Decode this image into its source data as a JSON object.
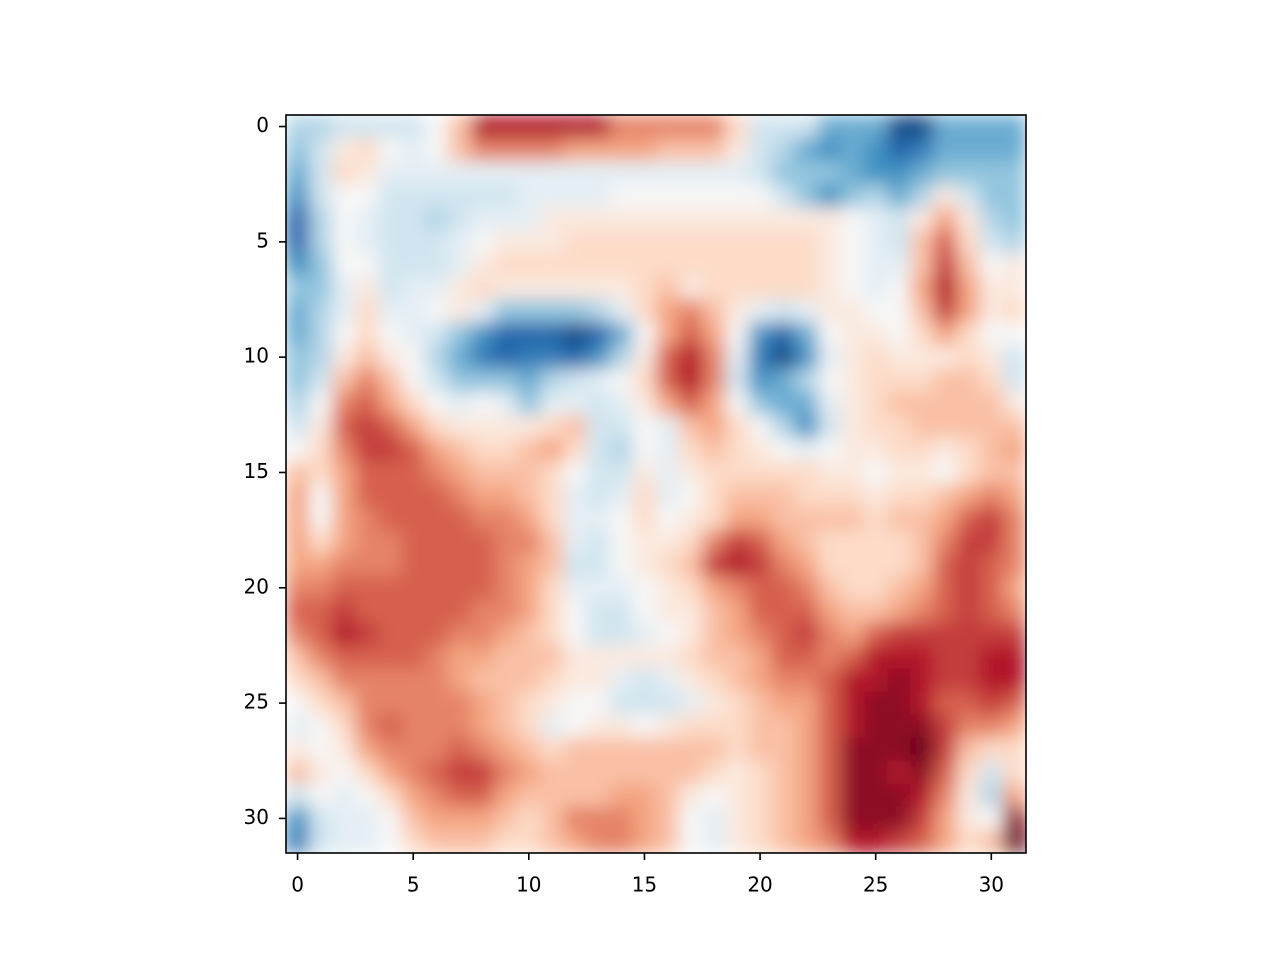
{
  "chart_data": {
    "type": "heatmap",
    "colormap": "RdBu_r",
    "vlim": [
      -1,
      1
    ],
    "interpolation": "smooth",
    "xlim": [
      -0.5,
      31.5
    ],
    "ylim": [
      31.5,
      -0.5
    ],
    "xticks": [
      0,
      5,
      10,
      15,
      20,
      25,
      30
    ],
    "yticks": [
      0,
      5,
      10,
      15,
      20,
      25,
      30
    ],
    "values": [
      [
        -0.3,
        -0.3,
        -0.2,
        -0.2,
        -0.2,
        -0.2,
        0,
        0.3,
        0.8,
        0.8,
        0.8,
        0.8,
        0.8,
        0.8,
        0.5,
        0.5,
        0.5,
        0.5,
        0.5,
        0.2,
        -0.2,
        -0.2,
        -0.2,
        -0.5,
        -0.5,
        -0.5,
        -0.9,
        -0.9,
        -0.5,
        -0.5,
        -0.5,
        -0.5
      ],
      [
        -0.4,
        -0.2,
        0.1,
        0.2,
        0,
        -0.1,
        0,
        0.3,
        0.5,
        0.5,
        0.5,
        0.5,
        0.4,
        0.4,
        0.4,
        0.4,
        0.3,
        0.3,
        0.3,
        0.1,
        -0.2,
        -0.3,
        -0.5,
        -0.6,
        -0.5,
        -0.6,
        -0.8,
        -0.7,
        -0.5,
        -0.5,
        -0.5,
        -0.5
      ],
      [
        -0.5,
        -0.2,
        0.2,
        0.1,
        -0.1,
        -0.1,
        -0.1,
        -0.1,
        -0.1,
        -0.1,
        -0.1,
        -0.1,
        -0.1,
        -0.1,
        -0.1,
        -0.1,
        -0.1,
        -0.1,
        -0.1,
        -0.1,
        -0.2,
        -0.4,
        -0.4,
        -0.4,
        -0.5,
        -0.6,
        -0.6,
        -0.5,
        -0.4,
        -0.4,
        -0.4,
        -0.4
      ],
      [
        -0.6,
        -0.2,
        0,
        0,
        -0.2,
        -0.2,
        -0.2,
        -0.2,
        -0.2,
        -0.2,
        -0.1,
        -0.1,
        -0.1,
        -0.1,
        0,
        0,
        0,
        0,
        0,
        0,
        0,
        -0.2,
        -0.4,
        -0.6,
        -0.4,
        -0.3,
        -0.5,
        -0.3,
        0.1,
        -0.2,
        -0.4,
        -0.4
      ],
      [
        -0.8,
        -0.3,
        0,
        -0.1,
        -0.2,
        -0.2,
        -0.3,
        -0.2,
        -0.1,
        -0.1,
        -0.1,
        0.1,
        0.1,
        0.1,
        0.1,
        0.1,
        0.1,
        0.1,
        0.1,
        0.1,
        0.1,
        0.1,
        0.1,
        0.1,
        0,
        -0.1,
        -0.2,
        0.1,
        0.4,
        0.1,
        -0.3,
        -0.4
      ],
      [
        -0.8,
        -0.3,
        0,
        -0.1,
        -0.2,
        -0.2,
        -0.2,
        -0.1,
        0,
        0.1,
        0.1,
        0.1,
        0.2,
        0.2,
        0.2,
        0.2,
        0.2,
        0.2,
        0.2,
        0.2,
        0.2,
        0.2,
        0.2,
        0.1,
        0,
        -0.1,
        -0.2,
        0.3,
        0.6,
        0.2,
        -0.2,
        -0.3
      ],
      [
        -0.6,
        -0.4,
        0,
        0,
        -0.2,
        -0.2,
        -0.2,
        -0.1,
        0.1,
        0.2,
        0.2,
        0.2,
        0.2,
        0.2,
        0.2,
        0.2,
        0.2,
        0.2,
        0.2,
        0.2,
        0.2,
        0.2,
        0.2,
        0.1,
        0,
        -0.1,
        -0.1,
        0.3,
        0.7,
        0.3,
        0,
        0.1
      ],
      [
        -0.4,
        -0.4,
        -0.1,
        0.1,
        -0.2,
        -0.1,
        -0.1,
        0.1,
        0.2,
        0.1,
        0.1,
        0.1,
        0.1,
        0.1,
        0.1,
        0.2,
        0.3,
        0.1,
        0.2,
        0.2,
        0.2,
        0.2,
        0.2,
        0.1,
        0,
        -0.1,
        0,
        0.4,
        0.8,
        0.4,
        0.1,
        0.1
      ],
      [
        -0.5,
        -0.3,
        -0.1,
        0.2,
        -0.1,
        -0.1,
        0,
        0.1,
        -0.1,
        -0.4,
        -0.4,
        -0.4,
        -0.4,
        -0.3,
        -0.1,
        0.2,
        0.4,
        0.5,
        0.3,
        0.1,
        -0.1,
        -0.2,
        -0.1,
        0.1,
        0.1,
        0,
        0,
        0.3,
        0.7,
        0.4,
        0.1,
        0.2
      ],
      [
        -0.5,
        -0.3,
        0,
        0.2,
        0,
        -0.1,
        -0.2,
        -0.4,
        -0.6,
        -0.8,
        -0.8,
        -0.8,
        -0.9,
        -0.8,
        -0.5,
        0,
        0.4,
        0.6,
        0.4,
        0,
        -0.6,
        -0.8,
        -0.5,
        0,
        0.1,
        0.1,
        0,
        0.2,
        0.4,
        0.2,
        0,
        0
      ],
      [
        -0.4,
        -0.3,
        0.1,
        0.3,
        0.1,
        0,
        -0.3,
        -0.5,
        -0.7,
        -0.8,
        -0.7,
        -0.7,
        -0.8,
        -0.6,
        -0.3,
        0.1,
        0.6,
        0.8,
        0.5,
        -0.1,
        -0.7,
        -0.9,
        -0.6,
        -0.1,
        0.1,
        0.2,
        0.1,
        0.1,
        0.1,
        0.2,
        0.1,
        -0.2
      ],
      [
        -0.4,
        -0.2,
        0.3,
        0.5,
        0.3,
        0,
        -0.2,
        -0.4,
        -0.4,
        -0.4,
        -0.5,
        -0.3,
        -0.2,
        -0.1,
        0,
        0.2,
        0.6,
        0.8,
        0.5,
        -0.2,
        -0.6,
        -0.5,
        -0.3,
        0,
        0.1,
        0.2,
        0.2,
        0.2,
        0.3,
        0.3,
        0.2,
        -0.2
      ],
      [
        -0.3,
        0,
        0.5,
        0.6,
        0.4,
        0.2,
        0,
        -0.1,
        0,
        -0.1,
        -0.4,
        -0.1,
        -0.1,
        -0.2,
        -0.1,
        0.1,
        0.4,
        0.6,
        0.4,
        0,
        -0.4,
        -0.5,
        -0.5,
        -0.1,
        0.1,
        0.2,
        0.3,
        0.3,
        0.3,
        0.3,
        0.3,
        0.1
      ],
      [
        -0.2,
        0.1,
        0.6,
        0.7,
        0.6,
        0.4,
        0.2,
        0.1,
        0.1,
        0.1,
        0.1,
        0.2,
        0.3,
        -0.2,
        -0.2,
        0,
        -0.1,
        0.3,
        0.4,
        0.2,
        0,
        -0.3,
        -0.6,
        -0.2,
        0.1,
        0.2,
        0.2,
        0.3,
        0.3,
        0.3,
        0.3,
        0.3
      ],
      [
        0,
        0.2,
        0.5,
        0.7,
        0.7,
        0.6,
        0.4,
        0.3,
        0.2,
        0.2,
        0.3,
        0.4,
        0.2,
        -0.2,
        -0.3,
        0,
        -0.1,
        0.2,
        0.3,
        0.2,
        0.1,
        0,
        -0.1,
        0,
        0.1,
        0.1,
        0.2,
        0.2,
        0.1,
        0.2,
        0.3,
        0.4
      ],
      [
        0.3,
        0.2,
        0.4,
        0.6,
        0.6,
        0.6,
        0.5,
        0.4,
        0.3,
        0.3,
        0.3,
        0.2,
        0,
        -0.2,
        -0.2,
        0.1,
        -0.1,
        0.1,
        0.2,
        0.2,
        0.2,
        0.2,
        0.2,
        0.1,
        0.1,
        0,
        0.1,
        0.1,
        0,
        0.2,
        0.3,
        0.3
      ],
      [
        0.4,
        0,
        0.4,
        0.6,
        0.6,
        0.6,
        0.6,
        0.5,
        0.4,
        0.4,
        0.3,
        0.2,
        -0.1,
        -0.2,
        -0.1,
        0.2,
        -0.1,
        0,
        0.2,
        0.3,
        0.3,
        0.3,
        0.2,
        0.2,
        0.2,
        0.1,
        0.2,
        0.2,
        0.3,
        0.4,
        0.5,
        0.4
      ],
      [
        0.4,
        0,
        0.4,
        0.5,
        0.6,
        0.6,
        0.6,
        0.6,
        0.5,
        0.5,
        0.4,
        0.2,
        -0.1,
        -0.1,
        0,
        0.2,
        0,
        0.1,
        0.2,
        0.4,
        0.4,
        0.3,
        0.3,
        0.3,
        0.3,
        0.2,
        0.3,
        0.3,
        0.4,
        0.6,
        0.7,
        0.5
      ],
      [
        0.4,
        0.2,
        0.4,
        0.5,
        0.5,
        0.6,
        0.6,
        0.6,
        0.6,
        0.5,
        0.5,
        0.3,
        -0.1,
        -0.2,
        0,
        0.1,
        0.1,
        0.2,
        0.5,
        0.7,
        0.6,
        0.4,
        0.3,
        0.2,
        0.2,
        0.2,
        0.2,
        0.3,
        0.5,
        0.7,
        0.7,
        0.5
      ],
      [
        0.4,
        0.4,
        0.5,
        0.5,
        0.5,
        0.6,
        0.6,
        0.6,
        0.6,
        0.5,
        0.4,
        0.3,
        -0.2,
        -0.2,
        0,
        0.1,
        0.2,
        0.3,
        0.7,
        0.8,
        0.7,
        0.5,
        0.4,
        0.2,
        0.2,
        0.2,
        0.2,
        0.3,
        0.6,
        0.7,
        0.6,
        0.5
      ],
      [
        0.5,
        0.5,
        0.6,
        0.6,
        0.6,
        0.6,
        0.6,
        0.6,
        0.6,
        0.5,
        0.4,
        0.2,
        -0.1,
        -0.1,
        -0.1,
        0,
        0.1,
        0.2,
        0.4,
        0.5,
        0.6,
        0.6,
        0.5,
        0.3,
        0.2,
        0.2,
        0.3,
        0.4,
        0.6,
        0.7,
        0.6,
        0.4
      ],
      [
        0.6,
        0.6,
        0.7,
        0.6,
        0.6,
        0.6,
        0.6,
        0.6,
        0.5,
        0.5,
        0.4,
        0.2,
        0,
        -0.2,
        -0.2,
        0,
        0.1,
        0.1,
        0.3,
        0.4,
        0.6,
        0.6,
        0.6,
        0.4,
        0.3,
        0.3,
        0.4,
        0.5,
        0.6,
        0.7,
        0.6,
        0.5
      ],
      [
        0.5,
        0.6,
        0.8,
        0.7,
        0.6,
        0.6,
        0.6,
        0.5,
        0.5,
        0.4,
        0.3,
        0.2,
        0,
        -0.2,
        -0.2,
        -0.1,
        0,
        0.1,
        0.3,
        0.4,
        0.5,
        0.6,
        0.7,
        0.5,
        0.4,
        0.6,
        0.7,
        0.7,
        0.7,
        0.7,
        0.7,
        0.7
      ],
      [
        0.3,
        0.5,
        0.6,
        0.6,
        0.6,
        0.6,
        0.5,
        0.4,
        0.4,
        0.3,
        0.3,
        0.3,
        0.1,
        0.1,
        0.1,
        0.1,
        0.1,
        0.2,
        0.3,
        0.3,
        0.4,
        0.6,
        0.6,
        0.5,
        0.6,
        0.8,
        0.8,
        0.8,
        0.7,
        0.7,
        0.8,
        0.8
      ],
      [
        0.2,
        0.3,
        0.5,
        0.5,
        0.5,
        0.5,
        0.5,
        0.4,
        0.3,
        0.3,
        0.3,
        0.2,
        0.1,
        0.1,
        -0.1,
        -0.2,
        -0.1,
        0.1,
        0.2,
        0.3,
        0.4,
        0.5,
        0.5,
        0.6,
        0.8,
        0.8,
        0.9,
        0.8,
        0.7,
        0.7,
        0.8,
        0.8
      ],
      [
        0,
        0.2,
        0.3,
        0.5,
        0.5,
        0.5,
        0.5,
        0.5,
        0.4,
        0.3,
        0.2,
        0.1,
        0,
        0,
        -0.2,
        -0.2,
        -0.2,
        -0.1,
        0.1,
        0.2,
        0.3,
        0.4,
        0.4,
        0.6,
        0.8,
        0.9,
        0.9,
        0.8,
        0.6,
        0.6,
        0.7,
        0.6
      ],
      [
        -0.1,
        0,
        0.2,
        0.5,
        0.6,
        0.5,
        0.5,
        0.5,
        0.4,
        0.3,
        0.2,
        -0.1,
        0,
        0.1,
        0.1,
        0,
        0.1,
        0.2,
        0.2,
        0.2,
        0.3,
        0.3,
        0.4,
        0.6,
        0.8,
        0.9,
        0.9,
        0.9,
        0.7,
        0.5,
        0.5,
        0.4
      ],
      [
        0.1,
        0,
        0.1,
        0.4,
        0.5,
        0.5,
        0.5,
        0.6,
        0.5,
        0.4,
        0.3,
        0.2,
        0.3,
        0.3,
        0.3,
        0.3,
        0.3,
        0.3,
        0.3,
        0.2,
        0.3,
        0.3,
        0.4,
        0.6,
        0.9,
        0.9,
        0.9,
        1.0,
        0.7,
        0.3,
        0.2,
        0.2
      ],
      [
        0.3,
        0.1,
        0,
        0.2,
        0.4,
        0.5,
        0.6,
        0.7,
        0.7,
        0.5,
        0.4,
        0.3,
        0.3,
        0.3,
        0.3,
        0.3,
        0.3,
        0.3,
        0.2,
        0.1,
        0.2,
        0.3,
        0.4,
        0.6,
        0.9,
        0.9,
        0.8,
        0.9,
        0.6,
        0.2,
        -0.2,
        0.2
      ],
      [
        -0.2,
        0,
        -0.1,
        0,
        0.2,
        0.4,
        0.5,
        0.6,
        0.6,
        0.4,
        0.3,
        0.3,
        0.3,
        0.3,
        0.4,
        0.4,
        0.3,
        0.1,
        0,
        0.1,
        0.2,
        0.3,
        0.4,
        0.6,
        0.9,
        0.9,
        0.9,
        0.8,
        0.5,
        0.1,
        -0.3,
        0.4
      ],
      [
        -0.6,
        -0.2,
        -0.1,
        -0.1,
        0,
        0.3,
        0.4,
        0.4,
        0.4,
        0.3,
        0.2,
        0.3,
        0.5,
        0.5,
        0.5,
        0.4,
        0.3,
        0,
        -0.1,
        0.1,
        0.2,
        0.3,
        0.4,
        0.6,
        0.9,
        0.9,
        0.9,
        0.7,
        0.4,
        0.1,
        0,
        0.9
      ],
      [
        -0.7,
        -0.2,
        -0.1,
        -0.1,
        0,
        0.2,
        0.3,
        0.3,
        0.3,
        0.2,
        0.2,
        0.3,
        0.4,
        0.5,
        0.5,
        0.4,
        0.3,
        0,
        -0.1,
        0.1,
        0.2,
        0.3,
        0.4,
        0.5,
        0.8,
        0.8,
        0.7,
        0.6,
        0.4,
        0.2,
        0.3,
        1.0
      ]
    ]
  }
}
